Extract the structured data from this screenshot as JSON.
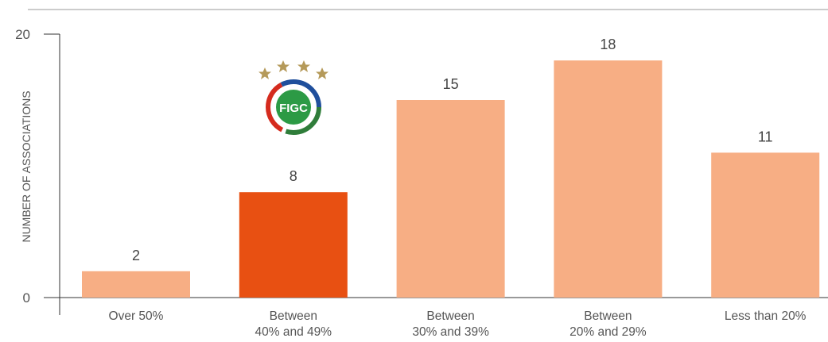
{
  "chart_data": {
    "type": "bar",
    "y_label": "NUMBER OF ASSOCIATIONS",
    "categories": [
      "Over 50%",
      "Between\n40% and 49%",
      "Between\n30% and 39%",
      "Between\n20% and 29%",
      "Less than 20%"
    ],
    "values": [
      2,
      8,
      15,
      18,
      11
    ],
    "colors": [
      "#f7ae84",
      "#e85012",
      "#f7ae84",
      "#f7ae84",
      "#f7ae84"
    ],
    "ylim": [
      0,
      20
    ],
    "yticks": [
      0,
      20
    ],
    "logo_text": "FIGC"
  }
}
